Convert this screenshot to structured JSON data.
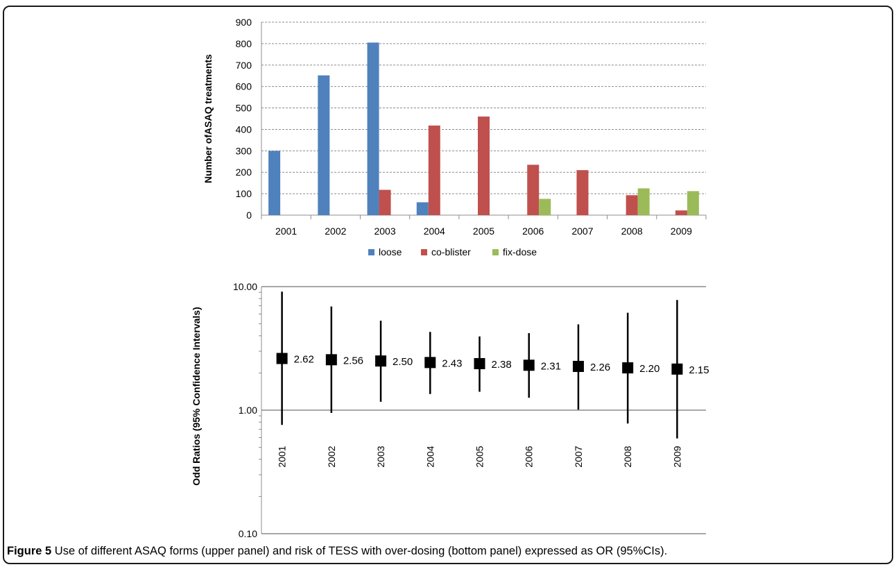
{
  "chart_data": [
    {
      "type": "bar",
      "title": "",
      "xlabel": "",
      "ylabel": "Number ofASAQ treatments",
      "ylim": [
        0,
        900
      ],
      "yticks": [
        0,
        100,
        200,
        300,
        400,
        500,
        600,
        700,
        800,
        900
      ],
      "grid": "horizontal dashed",
      "legend": "bottom",
      "categories": [
        "2001",
        "2002",
        "2003",
        "2004",
        "2005",
        "2006",
        "2007",
        "2008",
        "2009"
      ],
      "series": [
        {
          "name": "loose",
          "color": "#4f81bd",
          "values": [
            300,
            652,
            805,
            60,
            0,
            0,
            0,
            0,
            0
          ]
        },
        {
          "name": "co-blister",
          "color": "#c0504d",
          "values": [
            0,
            0,
            118,
            418,
            460,
            235,
            210,
            93,
            22
          ]
        },
        {
          "name": "fix-dose",
          "color": "#9bbb59",
          "values": [
            0,
            0,
            0,
            0,
            0,
            76,
            0,
            125,
            112
          ]
        }
      ]
    },
    {
      "type": "scatter",
      "title": "",
      "xlabel": "",
      "ylabel": "Odd Ratios (95% Confidence Intervals)",
      "yscale": "log",
      "ylim": [
        0.1,
        10
      ],
      "yticks": [
        "0.10",
        "1.00",
        "10.00"
      ],
      "grid": "horizontal at ticks",
      "legend": "none",
      "categories": [
        "2001",
        "2002",
        "2003",
        "2004",
        "2005",
        "2006",
        "2007",
        "2008",
        "2009"
      ],
      "or_values": [
        2.62,
        2.56,
        2.5,
        2.43,
        2.38,
        2.31,
        2.26,
        2.2,
        2.15
      ],
      "or_labels": [
        "2.62",
        "2.56",
        "2.50",
        "2.43",
        "2.38",
        "2.31",
        "2.26",
        "2.20",
        "2.15"
      ],
      "ci_lower": [
        0.76,
        0.95,
        1.17,
        1.35,
        1.41,
        1.26,
        1.01,
        0.78,
        0.59
      ],
      "ci_upper": [
        9.1,
        6.9,
        5.3,
        4.3,
        3.95,
        4.2,
        4.95,
        6.15,
        7.8
      ]
    }
  ],
  "caption": {
    "label": "Figure 5",
    "text": " Use of different ASAQ forms (upper panel) and risk of TESS with over-dosing (bottom panel) expressed as OR (95%CIs)."
  }
}
